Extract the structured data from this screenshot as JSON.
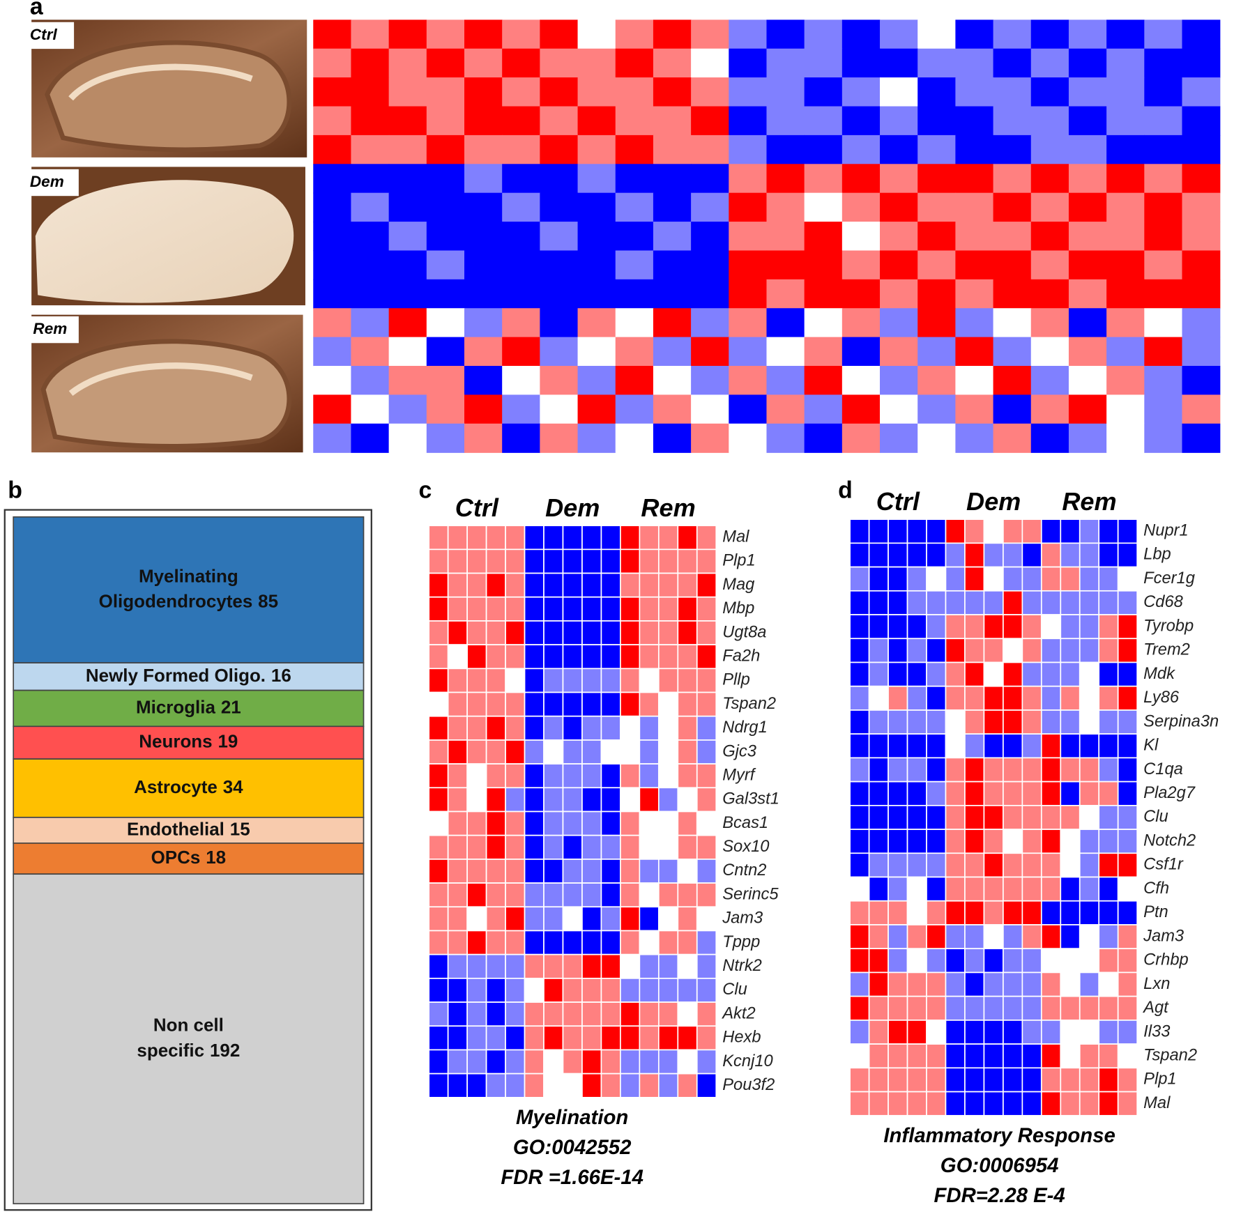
{
  "panel_a": {
    "label": "a",
    "images": [
      "Ctrl",
      "Dem",
      "Rem"
    ],
    "heatmap": [
      [
        2,
        1,
        2,
        1,
        2,
        1,
        2,
        0,
        1,
        2,
        1,
        -1,
        -2,
        -1,
        -2,
        -1,
        0,
        -2,
        -1,
        -2,
        -1,
        -2,
        -1,
        -2
      ],
      [
        1,
        2,
        1,
        2,
        1,
        2,
        1,
        1,
        2,
        1,
        0,
        -2,
        -1,
        -1,
        -2,
        -2,
        -1,
        -1,
        -2,
        -1,
        -2,
        -1,
        -2,
        -2
      ],
      [
        2,
        2,
        1,
        1,
        2,
        1,
        2,
        1,
        1,
        2,
        1,
        -1,
        -1,
        -2,
        -1,
        0,
        -2,
        -1,
        -1,
        -2,
        -1,
        -1,
        -2,
        -1
      ],
      [
        1,
        2,
        2,
        1,
        2,
        2,
        1,
        2,
        1,
        1,
        2,
        -2,
        -1,
        -1,
        -2,
        -1,
        -2,
        -2,
        -1,
        -1,
        -2,
        -1,
        -1,
        -2
      ],
      [
        2,
        1,
        1,
        2,
        1,
        1,
        2,
        1,
        2,
        1,
        1,
        -1,
        -2,
        -2,
        -1,
        -2,
        -1,
        -2,
        -2,
        -1,
        -1,
        -2,
        -2,
        -2
      ],
      [
        -2,
        -2,
        -2,
        -2,
        -1,
        -2,
        -2,
        -1,
        -2,
        -2,
        -2,
        1,
        2,
        1,
        2,
        1,
        2,
        2,
        1,
        2,
        1,
        2,
        1,
        2
      ],
      [
        -2,
        -1,
        -2,
        -2,
        -2,
        -1,
        -2,
        -2,
        -1,
        -2,
        -1,
        2,
        1,
        0,
        1,
        2,
        1,
        1,
        2,
        1,
        2,
        1,
        2,
        1
      ],
      [
        -2,
        -2,
        -1,
        -2,
        -2,
        -2,
        -1,
        -2,
        -2,
        -1,
        -2,
        1,
        1,
        2,
        0,
        1,
        2,
        1,
        1,
        2,
        1,
        1,
        2,
        1
      ],
      [
        -2,
        -2,
        -2,
        -1,
        -2,
        -2,
        -2,
        -2,
        -1,
        -2,
        -2,
        2,
        2,
        2,
        1,
        2,
        1,
        2,
        2,
        1,
        2,
        2,
        1,
        2
      ],
      [
        -2,
        -2,
        -2,
        -2,
        -2,
        -2,
        -2,
        -2,
        -2,
        -2,
        -2,
        2,
        1,
        2,
        2,
        1,
        2,
        1,
        2,
        2,
        1,
        2,
        2,
        2
      ],
      [
        1,
        -1,
        2,
        0,
        -1,
        1,
        -2,
        1,
        0,
        2,
        -1,
        1,
        -2,
        0,
        1,
        -1,
        2,
        -1,
        0,
        1,
        -2,
        1,
        0,
        -1
      ],
      [
        -1,
        1,
        0,
        -2,
        1,
        2,
        -1,
        0,
        1,
        -1,
        2,
        -1,
        0,
        1,
        -2,
        1,
        -1,
        2,
        -1,
        0,
        1,
        -1,
        2,
        -1
      ],
      [
        0,
        -1,
        1,
        1,
        -2,
        0,
        1,
        -1,
        2,
        0,
        -1,
        1,
        -1,
        2,
        0,
        -1,
        1,
        0,
        2,
        -1,
        0,
        1,
        -1,
        -2
      ],
      [
        2,
        0,
        -1,
        1,
        2,
        -1,
        0,
        2,
        -1,
        1,
        0,
        -2,
        1,
        -1,
        2,
        0,
        -1,
        1,
        -2,
        1,
        2,
        0,
        -1,
        1
      ],
      [
        -1,
        -2,
        0,
        -1,
        1,
        -2,
        1,
        -1,
        0,
        -2,
        1,
        0,
        -1,
        -2,
        1,
        -1,
        0,
        -1,
        1,
        -2,
        -1,
        0,
        -1,
        -2
      ]
    ]
  },
  "panel_b": {
    "label": "b",
    "blocks": [
      {
        "lines": [
          "Myelinating",
          "Oligodendrocytes"
        ],
        "value": 85,
        "color": "#2e75b6"
      },
      {
        "lines": [
          "Newly Formed Oligo."
        ],
        "value": 16,
        "color": "#bdd7ee"
      },
      {
        "lines": [
          "Microglia"
        ],
        "value": 21,
        "color": "#70ad47"
      },
      {
        "lines": [
          "Neurons"
        ],
        "value": 19,
        "color": "#ff5050"
      },
      {
        "lines": [
          "Astrocyte"
        ],
        "value": 34,
        "color": "#ffc000"
      },
      {
        "lines": [
          "Endothelial"
        ],
        "value": 15,
        "color": "#f8cbad"
      },
      {
        "lines": [
          "OPCs"
        ],
        "value": 18,
        "color": "#ed7d31"
      },
      {
        "lines": [
          "Non cell",
          "specific"
        ],
        "value": 192,
        "color": "#d0d0d0"
      }
    ]
  },
  "panel_c": {
    "label": "c",
    "groups": [
      "Ctrl",
      "Dem",
      "Rem"
    ],
    "genes": [
      "Mal",
      "Plp1",
      "Mag",
      "Mbp",
      "Ugt8a",
      "Fa2h",
      "Pllp",
      "Tspan2",
      "Ndrg1",
      "Gjc3",
      "Myrf",
      "Gal3st1",
      "Bcas1",
      "Sox10",
      "Cntn2",
      "Serinc5",
      "Jam3",
      "Tppp",
      "Ntrk2",
      "Clu",
      "Akt2",
      "Hexb",
      "Kcnj10",
      "Pou3f2"
    ],
    "values": [
      [
        1,
        1,
        1,
        1,
        1,
        -2,
        -2,
        -2,
        -2,
        -2,
        2,
        1,
        1,
        2,
        1
      ],
      [
        1,
        1,
        1,
        1,
        1,
        -2,
        -2,
        -2,
        -2,
        -2,
        2,
        1,
        1,
        1,
        1
      ],
      [
        2,
        1,
        1,
        2,
        1,
        -2,
        -2,
        -2,
        -2,
        -2,
        1,
        1,
        1,
        1,
        2
      ],
      [
        2,
        1,
        1,
        1,
        1,
        -2,
        -2,
        -2,
        -2,
        -2,
        2,
        1,
        1,
        2,
        1
      ],
      [
        1,
        2,
        1,
        1,
        2,
        -2,
        -2,
        -2,
        -2,
        -2,
        2,
        1,
        1,
        2,
        1
      ],
      [
        1,
        0,
        2,
        1,
        1,
        -2,
        -2,
        -2,
        -2,
        -2,
        2,
        1,
        1,
        1,
        2
      ],
      [
        2,
        1,
        1,
        1,
        0,
        -2,
        -1,
        -1,
        -1,
        -1,
        1,
        0,
        1,
        1,
        1
      ],
      [
        0,
        1,
        1,
        1,
        1,
        -2,
        -2,
        -2,
        -2,
        -2,
        2,
        1,
        0,
        1,
        1
      ],
      [
        2,
        1,
        1,
        2,
        1,
        -2,
        -1,
        -2,
        -1,
        -1,
        0,
        -1,
        0,
        1,
        -1
      ],
      [
        1,
        2,
        1,
        1,
        2,
        -1,
        0,
        -1,
        -1,
        0,
        0,
        -1,
        0,
        1,
        -1
      ],
      [
        2,
        1,
        0,
        1,
        1,
        -2,
        -1,
        -1,
        -1,
        -2,
        1,
        -1,
        0,
        1,
        1
      ],
      [
        2,
        1,
        0,
        2,
        -1,
        -2,
        -1,
        -1,
        -2,
        -2,
        0,
        2,
        -1,
        0,
        1
      ],
      [
        0,
        1,
        1,
        2,
        1,
        -2,
        -1,
        -1,
        -1,
        -2,
        1,
        0,
        0,
        1,
        0
      ],
      [
        1,
        1,
        1,
        2,
        1,
        -2,
        -1,
        -2,
        -1,
        -1,
        1,
        0,
        0,
        1,
        1
      ],
      [
        2,
        1,
        1,
        1,
        1,
        -2,
        -2,
        -1,
        -1,
        -2,
        1,
        -1,
        -1,
        0,
        -1
      ],
      [
        1,
        1,
        2,
        1,
        1,
        -1,
        -1,
        -1,
        -1,
        -2,
        1,
        0,
        1,
        1,
        1
      ],
      [
        1,
        1,
        0,
        1,
        2,
        -1,
        -1,
        0,
        -2,
        -1,
        2,
        -2,
        0,
        1,
        0
      ],
      [
        1,
        1,
        2,
        1,
        1,
        -2,
        -2,
        -2,
        -2,
        -2,
        1,
        0,
        1,
        1,
        -1
      ],
      [
        -2,
        -1,
        -1,
        -1,
        -1,
        1,
        1,
        1,
        2,
        2,
        0,
        -1,
        -1,
        0,
        -1
      ],
      [
        -2,
        -2,
        -1,
        -2,
        -1,
        0,
        2,
        1,
        1,
        1,
        -1,
        -1,
        -1,
        -1,
        -1
      ],
      [
        -1,
        -2,
        -1,
        -2,
        -1,
        1,
        1,
        1,
        1,
        1,
        2,
        1,
        1,
        0,
        1
      ],
      [
        -2,
        -2,
        -1,
        -1,
        -2,
        1,
        2,
        1,
        1,
        2,
        2,
        1,
        2,
        2,
        1
      ],
      [
        -2,
        -1,
        -1,
        -2,
        -1,
        1,
        0,
        1,
        2,
        1,
        -1,
        -1,
        -1,
        0,
        -1
      ],
      [
        -2,
        -2,
        -2,
        -1,
        -1,
        1,
        0,
        0,
        2,
        1,
        -1,
        1,
        -1,
        1,
        -2
      ]
    ],
    "caption": [
      "Myelination",
      "GO:0042552",
      "FDR =1.66E-14"
    ]
  },
  "panel_d": {
    "label": "d",
    "groups": [
      "Ctrl",
      "Dem",
      "Rem"
    ],
    "genes": [
      "Nupr1",
      "Lbp",
      "Fcer1g",
      "Cd68",
      "Tyrobp",
      "Trem2",
      "Mdk",
      "Ly86",
      "Serpina3n",
      "Kl",
      "C1qa",
      "Pla2g7",
      "Clu",
      "Notch2",
      "Csf1r",
      "Cfh",
      "Ptn",
      "Jam3",
      "Crhbp",
      "Lxn",
      "Agt",
      "Il33",
      "Tspan2",
      "Plp1",
      "Mal"
    ],
    "values": [
      [
        -2,
        -2,
        -2,
        -2,
        -2,
        2,
        1,
        0,
        1,
        1,
        -2,
        -2,
        -1,
        -2,
        -2
      ],
      [
        -2,
        -2,
        -2,
        -2,
        -2,
        -1,
        2,
        -1,
        -1,
        -2,
        1,
        -1,
        -1,
        -2,
        -2
      ],
      [
        -1,
        -2,
        -2,
        -1,
        0,
        -1,
        2,
        0,
        -1,
        -1,
        1,
        1,
        -1,
        -1,
        0
      ],
      [
        -2,
        -2,
        -2,
        -1,
        -1,
        -1,
        -1,
        -1,
        2,
        -1,
        -1,
        -1,
        -1,
        -1,
        -1
      ],
      [
        -2,
        -2,
        -2,
        -2,
        -1,
        1,
        1,
        2,
        2,
        1,
        0,
        -1,
        -1,
        1,
        2
      ],
      [
        -2,
        -1,
        -2,
        -1,
        -2,
        2,
        1,
        1,
        0,
        1,
        -1,
        -1,
        -1,
        1,
        2
      ],
      [
        -2,
        -1,
        -2,
        -2,
        -1,
        1,
        2,
        0,
        2,
        -1,
        -1,
        -1,
        0,
        -2,
        -2
      ],
      [
        -1,
        0,
        1,
        -1,
        -2,
        1,
        1,
        2,
        2,
        1,
        -1,
        1,
        0,
        1,
        2
      ],
      [
        -2,
        -1,
        -1,
        -1,
        -1,
        0,
        1,
        2,
        2,
        1,
        -1,
        -1,
        0,
        -1,
        -1
      ],
      [
        -2,
        -2,
        -2,
        -2,
        -2,
        0,
        -1,
        -2,
        -2,
        -1,
        2,
        -2,
        -2,
        -2,
        -2
      ],
      [
        -1,
        -2,
        -1,
        -1,
        -2,
        1,
        2,
        1,
        1,
        1,
        2,
        1,
        1,
        -1,
        -2
      ],
      [
        -2,
        -2,
        -2,
        -2,
        -1,
        1,
        2,
        1,
        1,
        1,
        2,
        -2,
        1,
        1,
        -2
      ],
      [
        -2,
        -2,
        -2,
        -2,
        -2,
        1,
        2,
        2,
        1,
        1,
        1,
        1,
        0,
        -1,
        -1
      ],
      [
        -2,
        -2,
        -2,
        -2,
        -2,
        1,
        2,
        1,
        0,
        1,
        2,
        0,
        -1,
        -1,
        -1
      ],
      [
        -2,
        -1,
        -1,
        -1,
        -1,
        1,
        1,
        2,
        1,
        1,
        1,
        0,
        -1,
        2,
        2
      ],
      [
        0,
        -2,
        -1,
        0,
        -2,
        1,
        1,
        1,
        1,
        1,
        1,
        -2,
        -1,
        -2,
        0
      ],
      [
        1,
        1,
        1,
        0,
        1,
        2,
        2,
        1,
        2,
        2,
        -2,
        -2,
        -2,
        -2,
        -2
      ],
      [
        2,
        1,
        -1,
        1,
        2,
        -1,
        -1,
        0,
        -1,
        1,
        2,
        -2,
        0,
        -1,
        1
      ],
      [
        2,
        2,
        -1,
        0,
        -1,
        -2,
        -1,
        -2,
        -1,
        -1,
        0,
        0,
        0,
        1,
        1
      ],
      [
        -1,
        2,
        1,
        1,
        1,
        -1,
        -2,
        -1,
        -1,
        -1,
        1,
        0,
        -1,
        0,
        1
      ],
      [
        2,
        1,
        1,
        1,
        1,
        -1,
        -1,
        -1,
        -1,
        -1,
        1,
        1,
        1,
        1,
        1
      ],
      [
        -1,
        1,
        2,
        2,
        0,
        -2,
        -2,
        -2,
        -2,
        -1,
        -1,
        0,
        0,
        -1,
        -1
      ],
      [
        0,
        1,
        1,
        1,
        1,
        -2,
        -2,
        -2,
        -2,
        -2,
        2,
        0,
        1,
        1,
        0
      ],
      [
        1,
        1,
        1,
        1,
        1,
        -2,
        -2,
        -2,
        -2,
        -2,
        1,
        1,
        1,
        2,
        1
      ],
      [
        1,
        1,
        1,
        1,
        1,
        -2,
        -2,
        -2,
        -2,
        -2,
        2,
        1,
        1,
        2,
        1
      ]
    ],
    "caption": [
      "Inflammatory Response",
      "GO:0006954",
      "FDR=2.28 E-4"
    ]
  },
  "color_scale": {
    "low": "#0000ff",
    "mid": "#ffffff",
    "high": "#ff0000",
    "range": [
      -2,
      2
    ]
  }
}
